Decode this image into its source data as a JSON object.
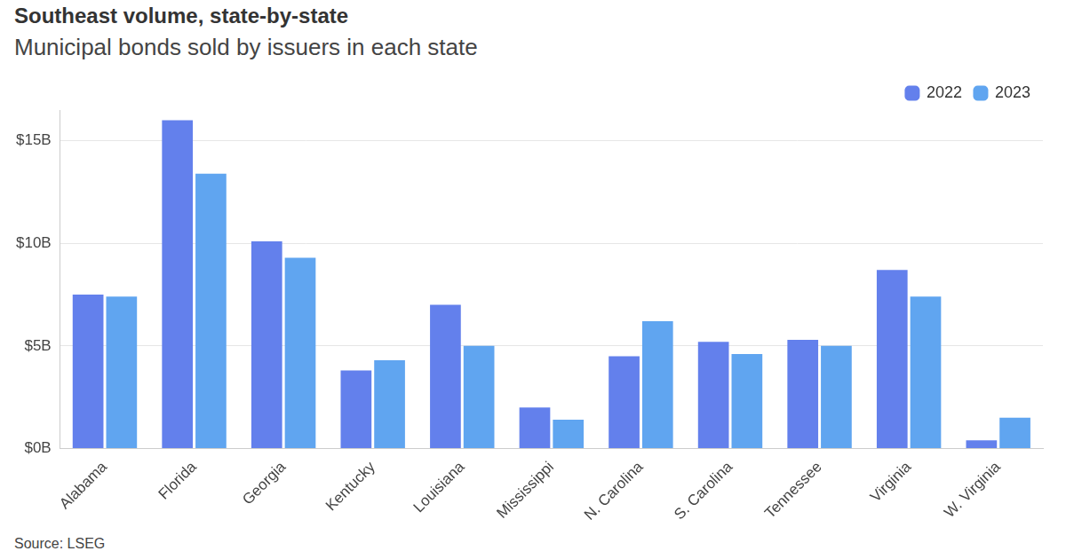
{
  "chart_data": {
    "type": "bar",
    "title": "Southeast volume, state-by-state",
    "subtitle": "Municipal bonds sold by issuers in each state",
    "source": "Source: LSEG",
    "categories": [
      "Alabama",
      "Florida",
      "Georgia",
      "Kentucky",
      "Louisiana",
      "Mississippi",
      "N. Carolina",
      "S. Carolina",
      "Tennessee",
      "Virginia",
      "W. Virginia"
    ],
    "series": [
      {
        "name": "2022",
        "color": "#6380ec",
        "values": [
          7.5,
          16.0,
          10.1,
          3.8,
          7.0,
          2.0,
          4.5,
          5.2,
          5.3,
          8.7,
          0.4
        ]
      },
      {
        "name": "2023",
        "color": "#60a5f0",
        "values": [
          7.4,
          13.4,
          9.3,
          4.3,
          5.0,
          1.4,
          6.2,
          4.6,
          5.0,
          7.4,
          1.5
        ]
      }
    ],
    "ylim": [
      0,
      16.5
    ],
    "yticks": [
      {
        "value": 0,
        "label": "$0B"
      },
      {
        "value": 5,
        "label": "$5B"
      },
      {
        "value": 10,
        "label": "$10B"
      },
      {
        "value": 15,
        "label": "$15B"
      }
    ],
    "grid": true,
    "legend": "top-right"
  }
}
